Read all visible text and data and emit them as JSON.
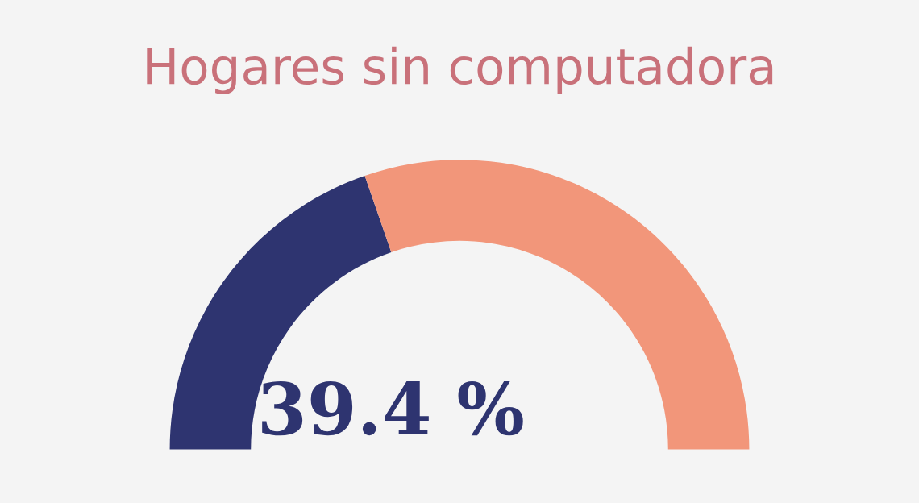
{
  "chart_data": {
    "type": "donut",
    "title": "Hogares sin computadora",
    "categories": [
      null,
      null
    ],
    "values": [
      39.4,
      60.6
    ],
    "colors": [
      "#2e3470",
      "#f2967a"
    ],
    "value_labels": [
      "39.4 %",
      null
    ]
  }
}
